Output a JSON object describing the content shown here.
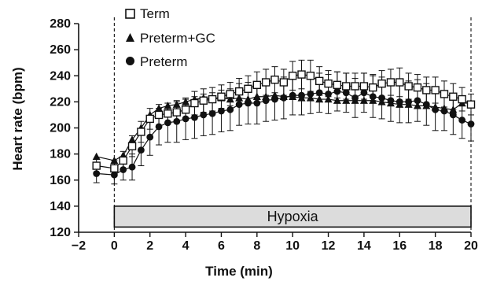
{
  "chart_data": {
    "type": "line",
    "xlabel": "Time (min)",
    "ylabel": "Heart rate (bpm)",
    "xlim": [
      -2,
      20
    ],
    "ylim": [
      120,
      280
    ],
    "xticks": [
      -2,
      0,
      2,
      4,
      6,
      8,
      10,
      12,
      14,
      16,
      18,
      20
    ],
    "yticks": [
      120,
      140,
      160,
      180,
      200,
      220,
      240,
      260,
      280
    ],
    "legend_position": "top-left",
    "annotation": {
      "label": "Hypoxia",
      "x_start": 0,
      "x_end": 20,
      "y_start": 124,
      "y_end": 140,
      "fill": "#dcdcdc"
    },
    "vertical_dashed_lines": [
      0,
      20
    ],
    "series": [
      {
        "name": "Term",
        "marker": "square-open",
        "color": "#111111",
        "x": [
          -1,
          0,
          0.5,
          1,
          1.5,
          2,
          2.5,
          3,
          3.5,
          4,
          4.5,
          5,
          5.5,
          6,
          6.5,
          7,
          7.5,
          8,
          8.5,
          9,
          9.5,
          10,
          10.5,
          11,
          11.5,
          12,
          12.5,
          13,
          13.5,
          14,
          14.5,
          15,
          15.5,
          16,
          16.5,
          17,
          17.5,
          18,
          18.5,
          19,
          19.5,
          20
        ],
        "y": [
          171,
          169,
          175,
          186,
          197,
          207,
          210,
          211,
          212,
          214,
          219,
          221,
          222,
          224,
          226,
          228,
          230,
          233,
          235,
          237,
          235,
          240,
          241,
          240,
          236,
          234,
          233,
          232,
          232,
          232,
          231,
          234,
          235,
          235,
          232,
          231,
          229,
          229,
          226,
          224,
          222,
          218
        ],
        "err": [
          5,
          6,
          7,
          8,
          8,
          8,
          8,
          8,
          8,
          8,
          9,
          9,
          9,
          9,
          9,
          10,
          10,
          10,
          10,
          10,
          10,
          11,
          11,
          12,
          11,
          10,
          10,
          10,
          10,
          10,
          10,
          10,
          10,
          11,
          10,
          10,
          10,
          10,
          10,
          10,
          9,
          8
        ]
      },
      {
        "name": "Preterm+GC",
        "marker": "triangle-filled",
        "color": "#111111",
        "x": [
          -1,
          0,
          0.5,
          1,
          1.5,
          2,
          2.5,
          3,
          3.5,
          4,
          4.5,
          5,
          5.5,
          6,
          6.5,
          7,
          7.5,
          8,
          8.5,
          9,
          9.5,
          10,
          10.5,
          11,
          11.5,
          12,
          12.5,
          13,
          13.5,
          14,
          14.5,
          15,
          15.5,
          16,
          16.5,
          17,
          17.5,
          18,
          18.5,
          19,
          19.5,
          20
        ],
        "y": [
          178,
          175,
          179,
          191,
          200,
          210,
          215,
          217,
          218,
          220,
          222,
          223,
          222,
          223,
          222,
          223,
          222,
          224,
          224,
          225,
          224,
          224,
          223,
          223,
          222,
          222,
          221,
          221,
          221,
          221,
          221,
          220,
          219,
          218,
          218,
          217,
          217,
          216,
          215,
          214,
          219,
          219
        ]
      },
      {
        "name": "Preterm",
        "marker": "circle-filled",
        "color": "#111111",
        "x": [
          -1,
          0,
          0.5,
          1,
          1.5,
          2,
          2.5,
          3,
          3.5,
          4,
          4.5,
          5,
          5.5,
          6,
          6.5,
          7,
          7.5,
          8,
          8.5,
          9,
          9.5,
          10,
          10.5,
          11,
          11.5,
          12,
          12.5,
          13,
          13.5,
          14,
          14.5,
          15,
          15.5,
          16,
          16.5,
          17,
          17.5,
          18,
          18.5,
          19,
          19.5,
          20
        ],
        "y": [
          165,
          164,
          168,
          170,
          183,
          193,
          201,
          204,
          205,
          207,
          208,
          210,
          211,
          213,
          214,
          218,
          219,
          219,
          221,
          222,
          223,
          225,
          225,
          226,
          227,
          226,
          228,
          227,
          223,
          227,
          224,
          223,
          221,
          220,
          220,
          221,
          218,
          214,
          213,
          210,
          206,
          203
        ],
        "err": [
          7,
          7,
          8,
          10,
          12,
          14,
          14,
          15,
          16,
          16,
          16,
          16,
          16,
          16,
          16,
          16,
          16,
          16,
          16,
          16,
          16,
          15,
          15,
          15,
          15,
          15,
          15,
          15,
          15,
          15,
          16,
          16,
          16,
          16,
          16,
          16,
          16,
          16,
          15,
          15,
          14,
          13
        ]
      }
    ]
  }
}
